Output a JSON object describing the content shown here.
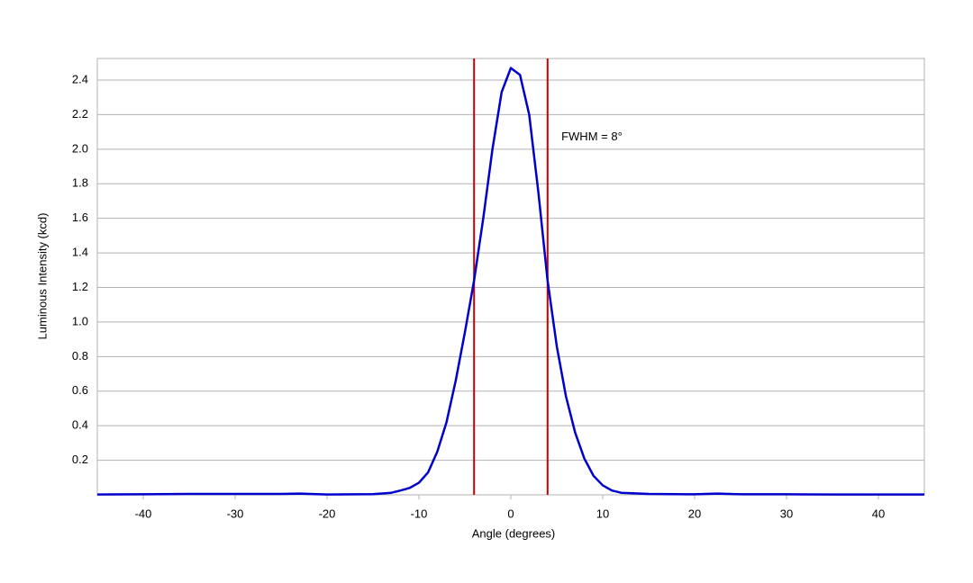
{
  "chart_data": {
    "type": "line",
    "xlabel": "Angle (degrees)",
    "ylabel": "Luminous Intensity (kcd)",
    "x": [
      -45,
      -40,
      -35,
      -30,
      -25,
      -23,
      -20,
      -15,
      -13,
      -12,
      -11,
      -10,
      -9,
      -8,
      -7,
      -6,
      -5,
      -4,
      -3,
      -2,
      -1,
      0,
      1,
      2,
      3,
      4,
      5,
      6,
      7,
      8,
      9,
      10,
      11,
      12,
      15,
      20,
      22.5,
      25,
      30,
      35,
      40,
      45
    ],
    "values": [
      0.002,
      0.003,
      0.005,
      0.005,
      0.005,
      0.007,
      0.002,
      0.004,
      0.012,
      0.025,
      0.04,
      0.07,
      0.13,
      0.25,
      0.42,
      0.66,
      0.94,
      1.24,
      1.6,
      2.0,
      2.33,
      2.47,
      2.43,
      2.2,
      1.75,
      1.24,
      0.86,
      0.57,
      0.36,
      0.21,
      0.11,
      0.055,
      0.025,
      0.012,
      0.005,
      0.003,
      0.007,
      0.003,
      0.003,
      0.002,
      0.002,
      0.002
    ],
    "color": "#0000cc",
    "vlines": [
      -4,
      4
    ],
    "vline_color": "#cc0000",
    "annotation": {
      "text": "FWHM = 8°",
      "x": 5.5,
      "y": 2.07
    },
    "xlim": [
      -45,
      45
    ],
    "xticks": [
      -40,
      -30,
      -20,
      -10,
      0,
      10,
      20,
      30,
      40
    ],
    "ylim": [
      0,
      2.525
    ],
    "yticks": [
      0.2,
      0.4,
      0.6,
      0.8,
      {
        "value": 1,
        "label": "1.0"
      },
      1.2,
      1.4,
      1.6,
      1.8,
      {
        "value": 2,
        "label": "2.0"
      },
      2.2,
      2.4
    ],
    "grid": true
  }
}
